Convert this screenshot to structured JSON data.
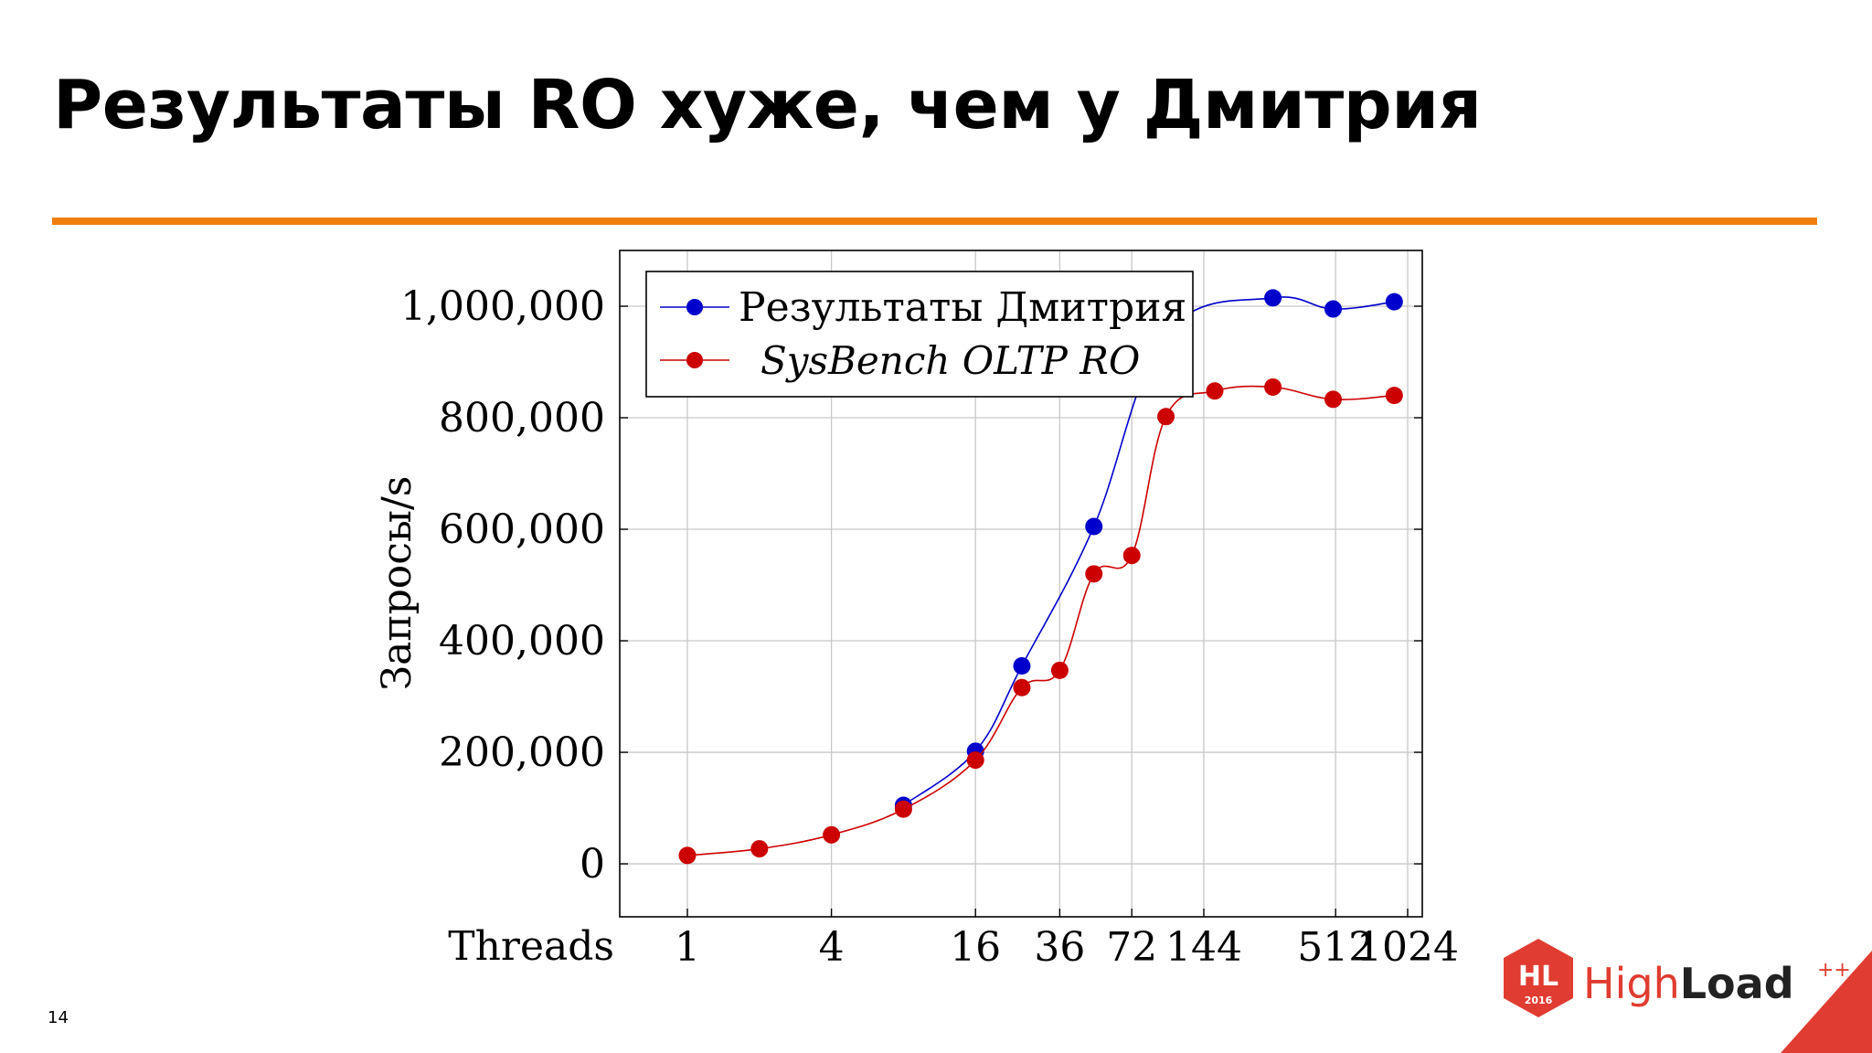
{
  "slide": {
    "title": "Результаты RO хуже, чем у Дмитрия",
    "page_number": "14",
    "accent_color": "#f07f0e"
  },
  "logo": {
    "badge_text": "HL",
    "badge_year": "2016",
    "name_part1": "High",
    "name_part2": "Load",
    "superscript": "++",
    "brand_color": "#e03c31"
  },
  "chart_data": {
    "type": "line",
    "x_axis": {
      "label": "Threads",
      "scale": "log2",
      "ticks": [
        1,
        4,
        16,
        36,
        72,
        144,
        512,
        1024
      ],
      "tick_labels": [
        "1",
        "4",
        "16",
        "36",
        "72",
        "144",
        "512",
        "1024"
      ]
    },
    "y_axis": {
      "label": "Запросы/s",
      "ylim": [
        -95000,
        1100000
      ],
      "ticks": [
        0,
        200000,
        400000,
        600000,
        800000,
        1000000
      ],
      "tick_labels": [
        "0",
        "200,000",
        "400,000",
        "600,000",
        "800,000",
        "1,000,000"
      ]
    },
    "grid": true,
    "legend_position": "top-left",
    "series": [
      {
        "name": "Результаты Дмитрия",
        "color": "#0000cc",
        "points": [
          {
            "x": 8,
            "y": 105000
          },
          {
            "x": 16,
            "y": 202000
          },
          {
            "x": 25,
            "y": 355000
          },
          {
            "x": 50,
            "y": 605000
          },
          {
            "x": 100,
            "y": 950000
          },
          {
            "x": 280,
            "y": 1015000
          },
          {
            "x": 500,
            "y": 995000
          },
          {
            "x": 900,
            "y": 1008000
          }
        ]
      },
      {
        "name": "SysBench OLTP RO",
        "color": "#cc0000",
        "points": [
          {
            "x": 1,
            "y": 15000
          },
          {
            "x": 2,
            "y": 27000
          },
          {
            "x": 4,
            "y": 52000
          },
          {
            "x": 8,
            "y": 98000
          },
          {
            "x": 16,
            "y": 186000
          },
          {
            "x": 25,
            "y": 316000
          },
          {
            "x": 36,
            "y": 347000
          },
          {
            "x": 50,
            "y": 520000
          },
          {
            "x": 72,
            "y": 553000
          },
          {
            "x": 100,
            "y": 802000
          },
          {
            "x": 160,
            "y": 848000
          },
          {
            "x": 280,
            "y": 855000
          },
          {
            "x": 500,
            "y": 833000
          },
          {
            "x": 900,
            "y": 840000
          }
        ]
      }
    ]
  }
}
